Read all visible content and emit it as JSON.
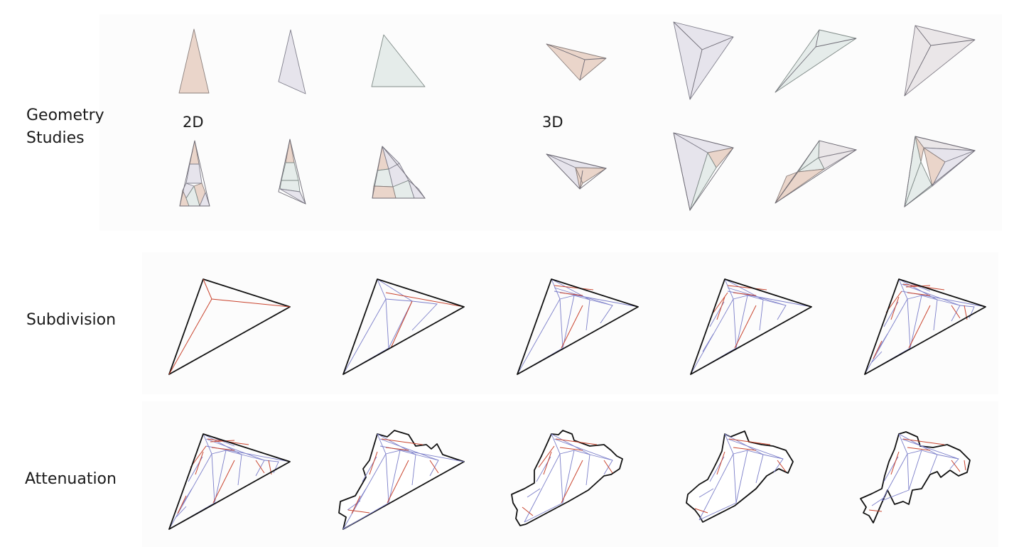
{
  "rows": {
    "geometry": {
      "label_line1": "Geometry",
      "label_line2": "Studies",
      "label_2d": "2D",
      "label_3d": "3D"
    },
    "subdivision": {
      "label": "Subdivision"
    },
    "attenuation": {
      "label": "Attenuation"
    }
  },
  "colors": {
    "peach": "#ead5ca",
    "lavender": "#e6e4ec",
    "mint": "#e5ecea",
    "grey": "#eae6e8",
    "outline": "#111111",
    "red_edge": "#c9442e",
    "blue_edge": "#7b7ec9"
  }
}
